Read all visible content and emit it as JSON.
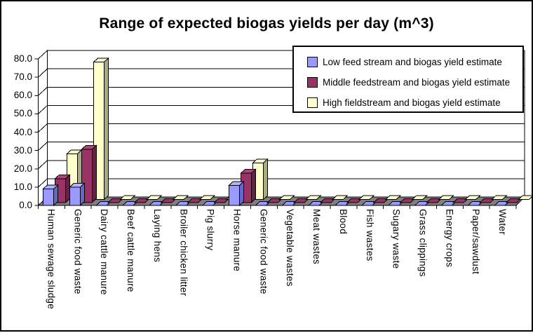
{
  "frame": {
    "background": "#FFFFFF",
    "border_color": "#000000"
  },
  "chart_data": {
    "type": "bar",
    "projection": "3d-clustered-column",
    "title": "Range of expected biogas yields per day (m^3)",
    "categories": [
      "Human sewage sludge",
      "Generic food waste",
      "Dairy cattle manure",
      "Beef cattle manure",
      "Laying hens",
      "Broiler chicken litter",
      "Pig slurry",
      "Horse manure",
      "Generic food waste",
      "Vegetable wastes",
      "Meat wastes",
      "Blood",
      "Fish wastes",
      "Sugary waste",
      "Grass clippings",
      "Energy crops",
      "Paper/sawdust",
      "Water"
    ],
    "series": [
      {
        "name": "Low feed stream and biogas yield estimate",
        "color": "#9999FF",
        "values": [
          9,
          10,
          0,
          0,
          0,
          0,
          0,
          11,
          0,
          0,
          0,
          0,
          0,
          0,
          0,
          0,
          0,
          0
        ]
      },
      {
        "name": "Middle feedstream and biogas yield estimate",
        "color": "#993366",
        "values": [
          13,
          29,
          0,
          0,
          0,
          0,
          0,
          16,
          0,
          0,
          0,
          0,
          0,
          0,
          0,
          0,
          0,
          0
        ]
      },
      {
        "name": "High fieldstream and biogas yield estimate",
        "color": "#FFFFCC",
        "values": [
          25,
          75,
          0,
          0,
          0,
          0,
          0,
          20,
          0,
          0,
          0,
          0,
          0,
          0,
          0,
          0,
          0,
          0
        ]
      }
    ],
    "ylim": [
      0,
      80
    ],
    "yticks": [
      "0.0",
      "10.0",
      "20.0",
      "30.0",
      "40.0",
      "50.0",
      "60.0",
      "70.0",
      "80.0"
    ],
    "grid": true,
    "legend_position": "top-right",
    "wall_color": "#FFFFFF",
    "floor_color": "#808080",
    "axis_color": "#000000"
  }
}
